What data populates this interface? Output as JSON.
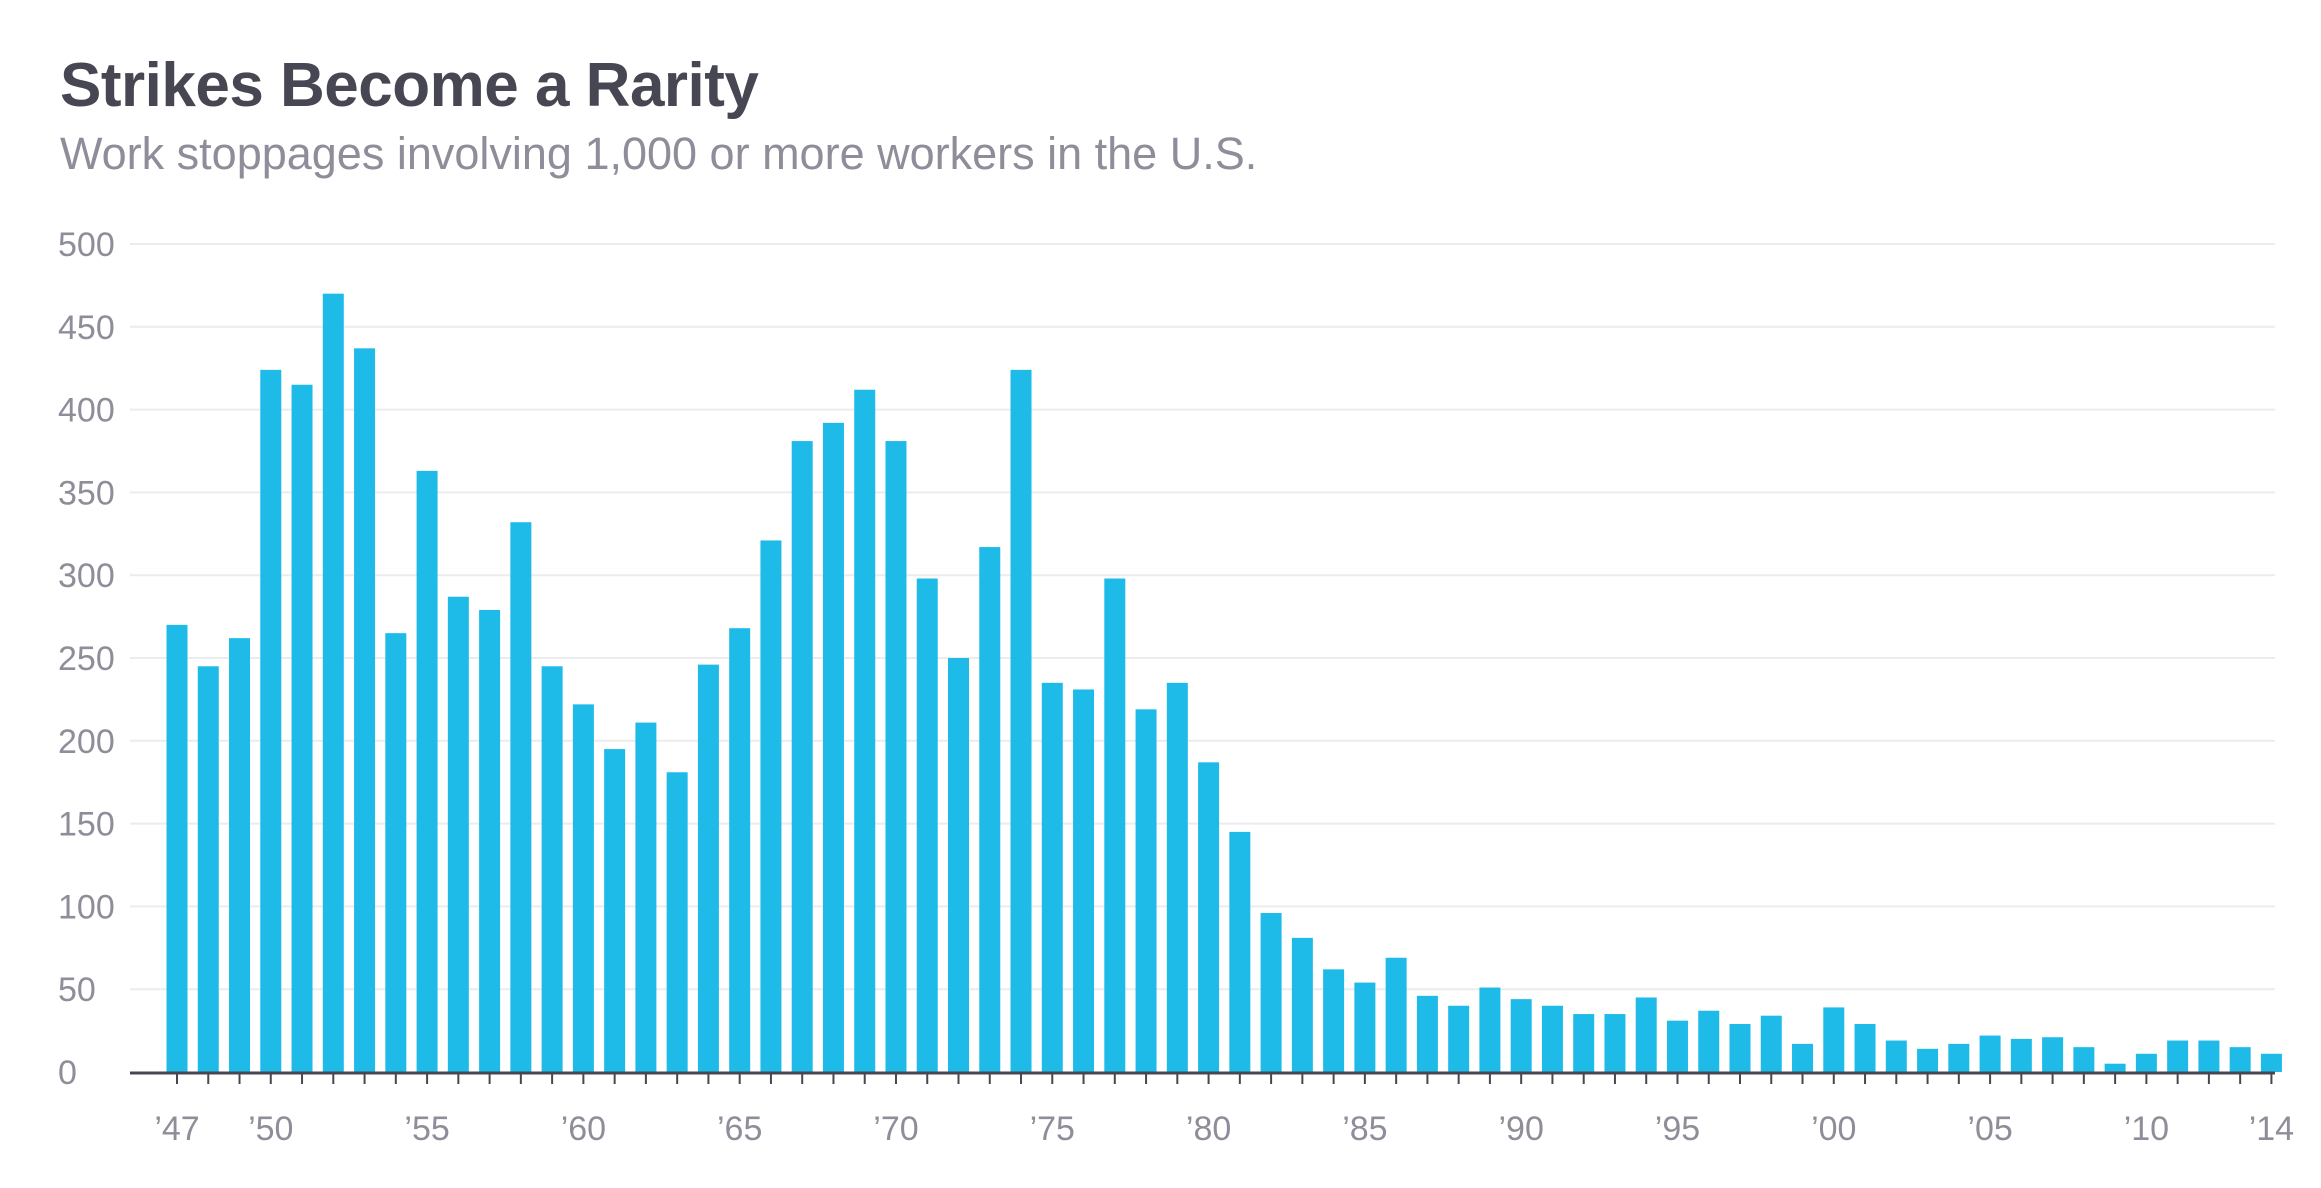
{
  "chart_data": {
    "type": "bar",
    "title": "Strikes Become a Rarity",
    "subtitle": "Work stoppages involving 1,000 or more workers in the U.S.",
    "xlabel": "",
    "ylabel": "",
    "ylim": [
      0,
      500
    ],
    "yticks": [
      0,
      50,
      100,
      150,
      200,
      250,
      300,
      350,
      400,
      450,
      500
    ],
    "grid": true,
    "bar_color": "#1ebbe9",
    "categories": [
      1947,
      1948,
      1949,
      1950,
      1951,
      1952,
      1953,
      1954,
      1955,
      1956,
      1957,
      1958,
      1959,
      1960,
      1961,
      1962,
      1963,
      1964,
      1965,
      1966,
      1967,
      1968,
      1969,
      1970,
      1971,
      1972,
      1973,
      1974,
      1975,
      1976,
      1977,
      1978,
      1979,
      1980,
      1981,
      1982,
      1983,
      1984,
      1985,
      1986,
      1987,
      1988,
      1989,
      1990,
      1991,
      1992,
      1993,
      1994,
      1995,
      1996,
      1997,
      1998,
      1999,
      2000,
      2001,
      2002,
      2003,
      2004,
      2005,
      2006,
      2007,
      2008,
      2009,
      2010,
      2011,
      2012,
      2013,
      2014
    ],
    "values": [
      270,
      245,
      262,
      424,
      415,
      470,
      437,
      265,
      363,
      287,
      279,
      332,
      245,
      222,
      195,
      211,
      181,
      246,
      268,
      321,
      381,
      392,
      412,
      381,
      298,
      250,
      317,
      424,
      235,
      231,
      298,
      219,
      235,
      187,
      145,
      96,
      81,
      62,
      54,
      69,
      46,
      40,
      51,
      44,
      40,
      35,
      35,
      45,
      31,
      37,
      29,
      34,
      17,
      39,
      29,
      19,
      14,
      17,
      22,
      20,
      21,
      15,
      5,
      11,
      19,
      19,
      15,
      11
    ],
    "xtick_labels": [
      {
        "year": 1947,
        "label": "’47"
      },
      {
        "year": 1950,
        "label": "’50"
      },
      {
        "year": 1955,
        "label": "’55"
      },
      {
        "year": 1960,
        "label": "’60"
      },
      {
        "year": 1965,
        "label": "’65"
      },
      {
        "year": 1970,
        "label": "’70"
      },
      {
        "year": 1975,
        "label": "’75"
      },
      {
        "year": 1980,
        "label": "’80"
      },
      {
        "year": 1985,
        "label": "’85"
      },
      {
        "year": 1990,
        "label": "’90"
      },
      {
        "year": 1995,
        "label": "’95"
      },
      {
        "year": 2000,
        "label": "’00"
      },
      {
        "year": 2005,
        "label": "’05"
      },
      {
        "year": 2010,
        "label": "’10"
      },
      {
        "year": 2014,
        "label": "’14"
      }
    ]
  }
}
